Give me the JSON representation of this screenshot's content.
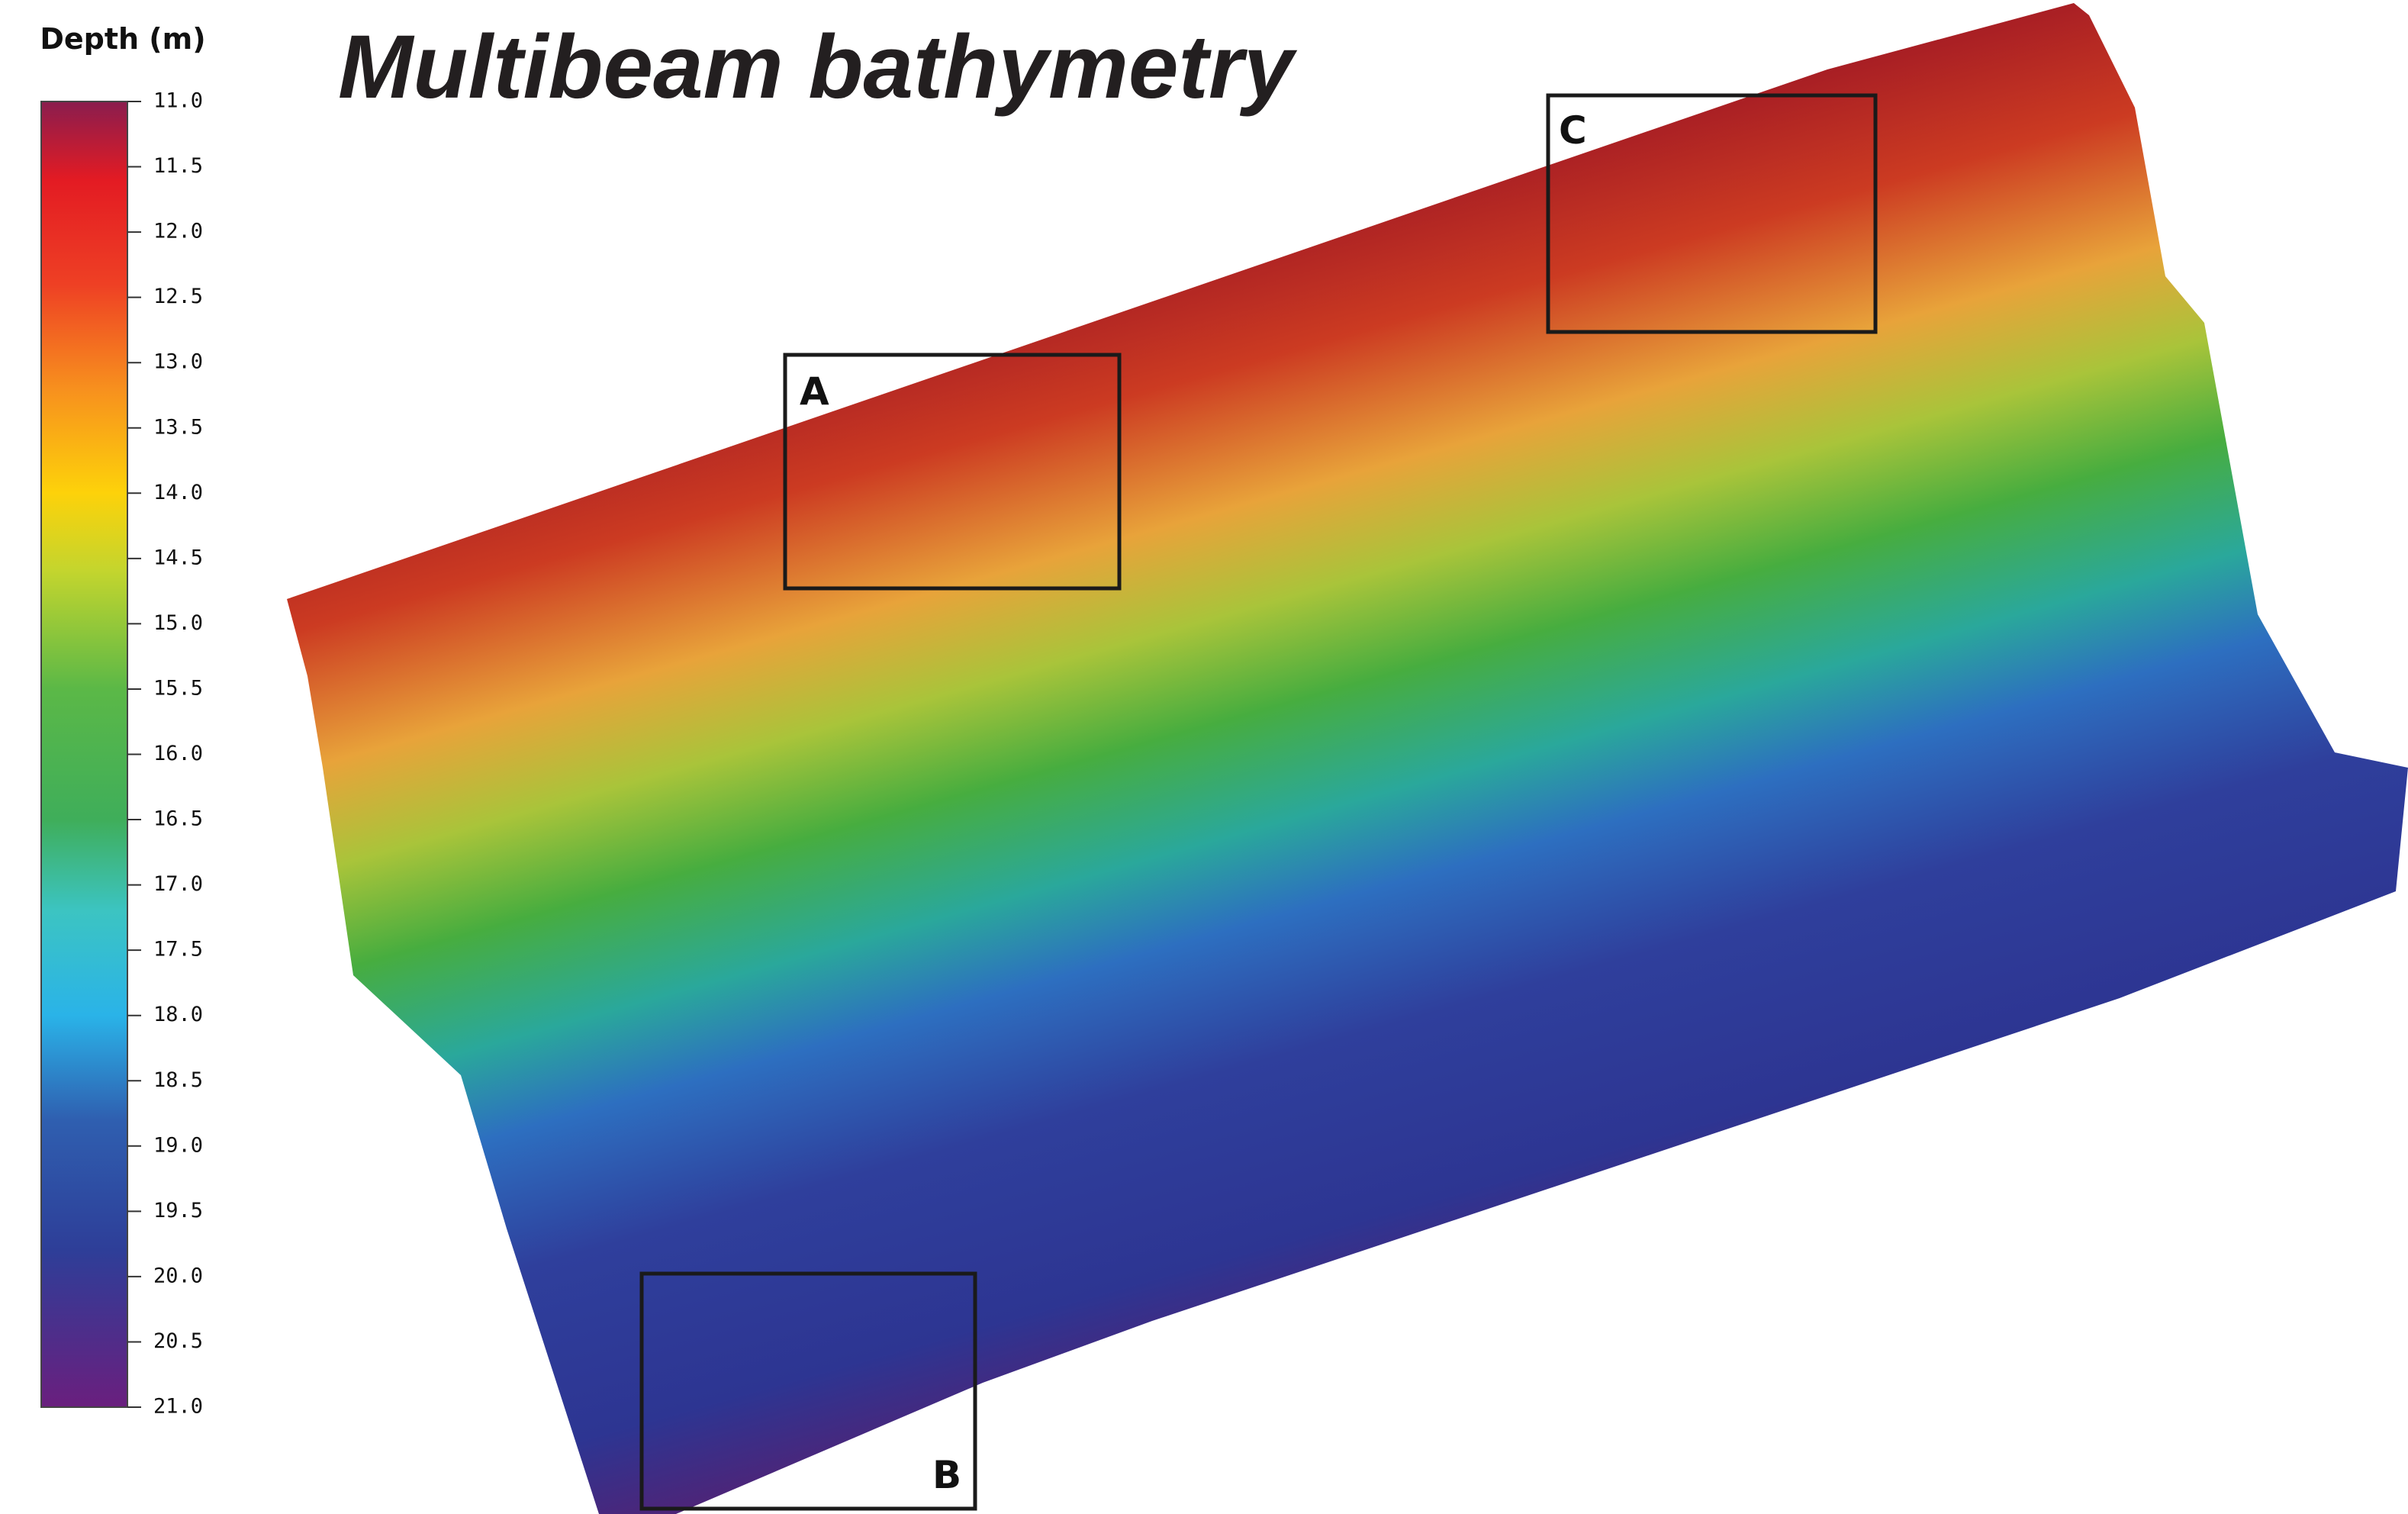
{
  "title": "Multibeam bathymetry",
  "legend": {
    "title": "Depth (m)",
    "ticks": [
      {
        "value": 11,
        "label": "11.0"
      },
      {
        "value": 11.5,
        "label": "11.5"
      },
      {
        "value": 12,
        "label": "12.0"
      },
      {
        "value": 12.5,
        "label": "12.5"
      },
      {
        "value": 13,
        "label": "13.0"
      },
      {
        "value": 13.5,
        "label": "13.5"
      },
      {
        "value": 14,
        "label": "14.0"
      },
      {
        "value": 14.5,
        "label": "14.5"
      },
      {
        "value": 15,
        "label": "15.0"
      },
      {
        "value": 15.5,
        "label": "15.5"
      },
      {
        "value": 16,
        "label": "16.0"
      },
      {
        "value": 16.5,
        "label": "16.5"
      },
      {
        "value": 17,
        "label": "17.0"
      },
      {
        "value": 17.5,
        "label": "17.5"
      },
      {
        "value": 18,
        "label": "18.0"
      },
      {
        "value": 18.5,
        "label": "18.5"
      },
      {
        "value": 19,
        "label": "19.0"
      },
      {
        "value": 19.5,
        "label": "19.5"
      },
      {
        "value": 20,
        "label": "20.0"
      },
      {
        "value": 20.5,
        "label": "20.5"
      },
      {
        "value": 21,
        "label": "21.0"
      }
    ],
    "range": [
      11,
      21
    ]
  },
  "boxes": [
    {
      "label": "A"
    },
    {
      "label": "B"
    },
    {
      "label": "C"
    }
  ]
}
